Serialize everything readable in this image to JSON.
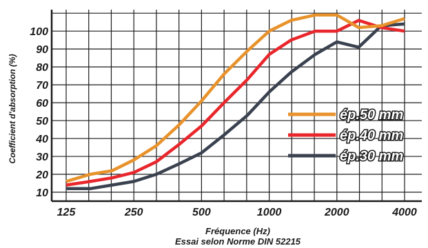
{
  "chart_data": {
    "type": "line",
    "title": "",
    "xlabel": "Fréquence (Hz)",
    "subtitle": "Essai selon Norme DIN 52215",
    "ylabel": "Coefficient d'absorption (%)",
    "x_ticks": [
      "125",
      "250",
      "500",
      "1000",
      "2000",
      "4000"
    ],
    "y_ticks": [
      "10",
      "20",
      "30",
      "40",
      "50",
      "60",
      "70",
      "80",
      "90",
      "100"
    ],
    "ylim": [
      5,
      112
    ],
    "x_scale": "log",
    "x_octaves": 5,
    "grid": true,
    "legend_position": "right",
    "x_freq": [
      125,
      160,
      200,
      250,
      315,
      400,
      500,
      630,
      800,
      1000,
      1250,
      1600,
      2000,
      2500,
      3150,
      4000
    ],
    "series": [
      {
        "name": "ép.50 mm",
        "color": "#e8922b",
        "values": [
          16,
          20,
          22,
          28,
          36,
          48,
          61,
          76,
          89,
          100,
          106,
          109,
          109,
          102,
          103,
          107
        ]
      },
      {
        "name": "ép.40 mm",
        "color": "#e8262b",
        "values": [
          14,
          16,
          18,
          21,
          27,
          37,
          47,
          60,
          73,
          87,
          95,
          100,
          100,
          106,
          102,
          100
        ]
      },
      {
        "name": "ép.30 mm",
        "color": "#3a414f",
        "values": [
          12,
          12,
          14,
          16,
          20,
          26,
          32,
          42,
          53,
          66,
          77,
          87,
          94,
          91,
          103,
          104
        ]
      }
    ]
  }
}
